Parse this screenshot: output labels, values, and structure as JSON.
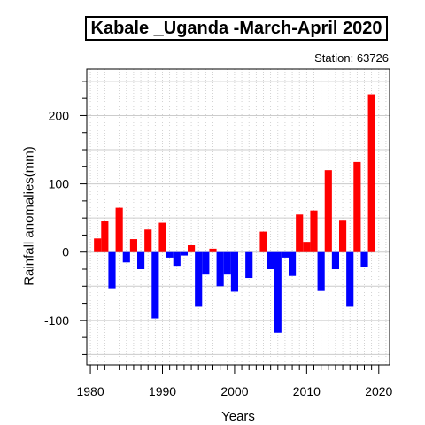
{
  "title": "Kabale _Uganda -March-April 2020",
  "station_label": "Station: 63726",
  "chart_data": {
    "type": "bar",
    "xlabel": "Years",
    "ylabel": "Rainfall anomalies(mm)",
    "x": [
      1981,
      1982,
      1983,
      1984,
      1985,
      1986,
      1987,
      1988,
      1989,
      1990,
      1991,
      1992,
      1993,
      1994,
      1995,
      1996,
      1997,
      1998,
      1999,
      2000,
      2001,
      2002,
      2003,
      2004,
      2005,
      2006,
      2007,
      2008,
      2009,
      2010,
      2011,
      2012,
      2013,
      2014,
      2015,
      2016,
      2017,
      2018,
      2019,
      2020
    ],
    "values": [
      20,
      45,
      -53,
      65,
      -15,
      19,
      -25,
      33,
      -97,
      43,
      -8,
      -20,
      -5,
      10,
      -80,
      -33,
      5,
      -50,
      -33,
      -58,
      0,
      -38,
      0,
      30,
      -25,
      -118,
      -8,
      -35,
      55,
      15,
      61,
      -57,
      120,
      -25,
      46,
      -80,
      132,
      -22,
      231,
      0
    ],
    "xlim": [
      1979.5,
      2021.5
    ],
    "ylim": [
      -165,
      268
    ],
    "xticks": [
      1980,
      1990,
      2000,
      2010,
      2020
    ],
    "yticks": [
      -100,
      0,
      100,
      200
    ],
    "grid": true,
    "positive_color": "#ff0000",
    "negative_color": "#0000ff"
  }
}
